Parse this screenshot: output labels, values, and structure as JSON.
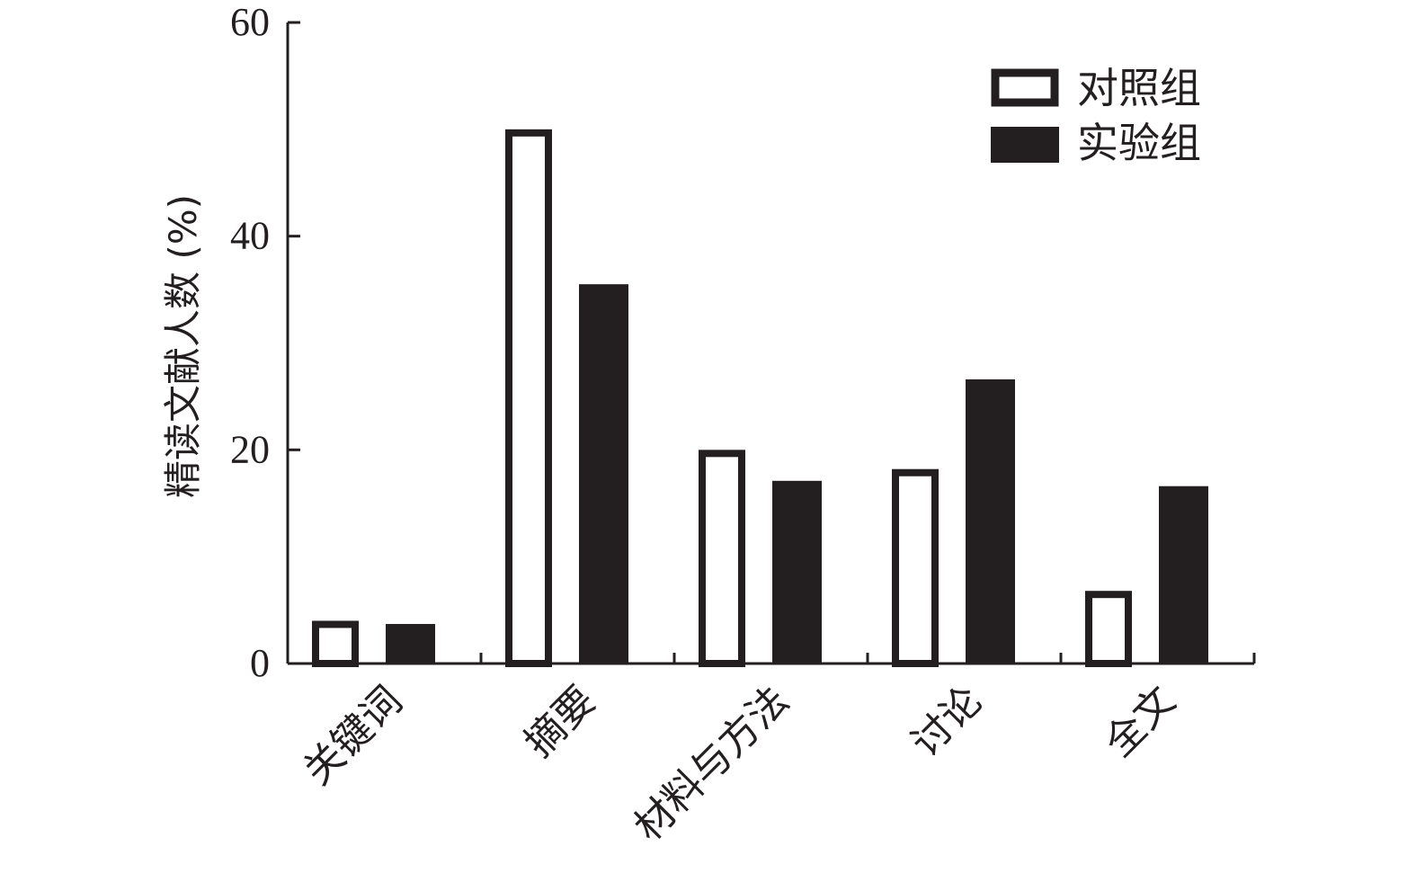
{
  "chart_data": {
    "type": "bar",
    "title": "",
    "xlabel": "",
    "ylabel": "精读文献人数 (%)",
    "ylim": [
      0,
      60
    ],
    "yticks": [
      0,
      20,
      40,
      60
    ],
    "categories": [
      "关键词",
      "摘要",
      "材料与方法",
      "讨论",
      "全文"
    ],
    "series": [
      {
        "name": "对照组",
        "style": "outline",
        "color": "#231f20",
        "values": [
          4,
          50,
          20,
          18.2,
          6.8
        ]
      },
      {
        "name": "实验组",
        "style": "filled",
        "color": "#231f20",
        "values": [
          3.7,
          35.5,
          17.1,
          26.6,
          16.6
        ]
      }
    ],
    "legend_position": "top-right",
    "grid": false
  }
}
